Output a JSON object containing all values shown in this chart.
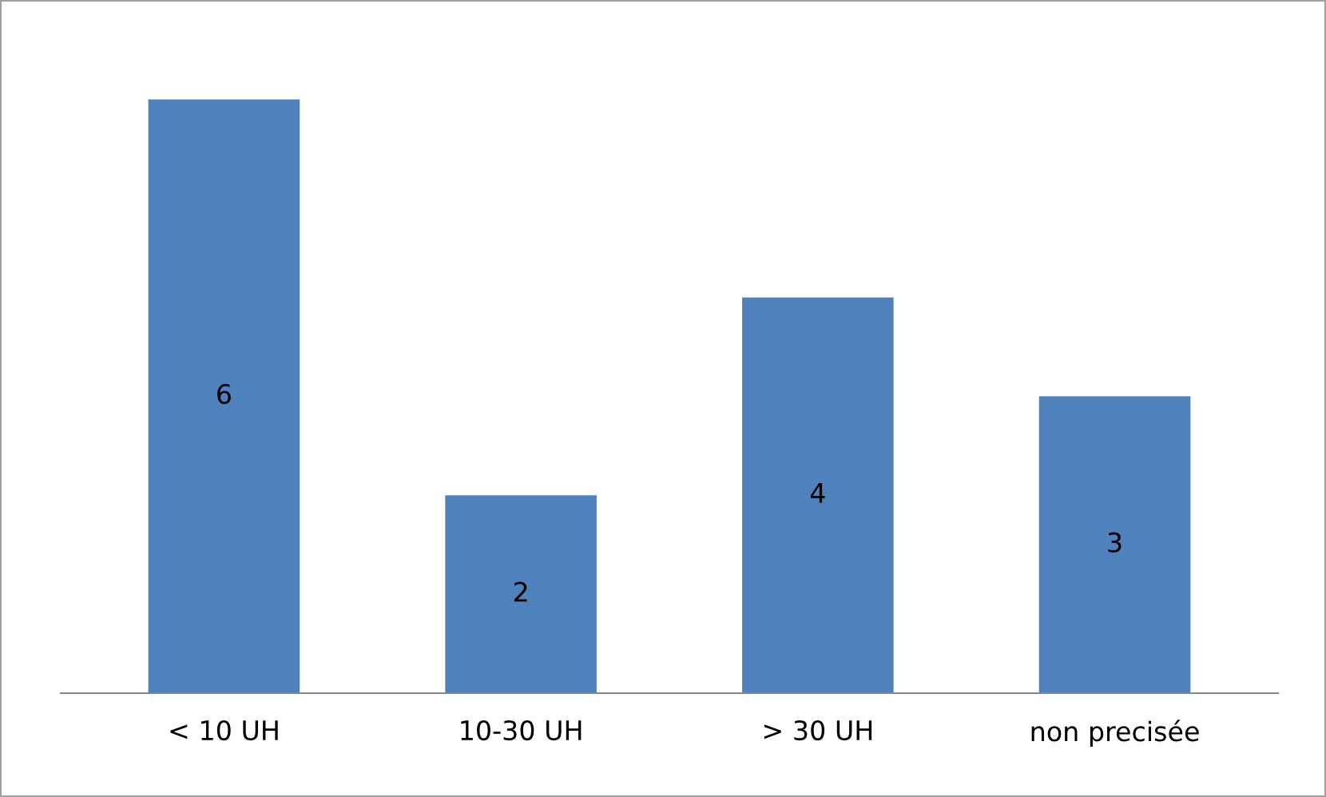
{
  "chart_data": {
    "type": "bar",
    "categories": [
      "< 10 UH",
      "10-30 UH",
      "> 30 UH",
      "non precisée"
    ],
    "values": [
      6,
      2,
      4,
      3
    ],
    "color": "#4f81bd",
    "data_labels": true,
    "grid": false,
    "legend": false
  }
}
